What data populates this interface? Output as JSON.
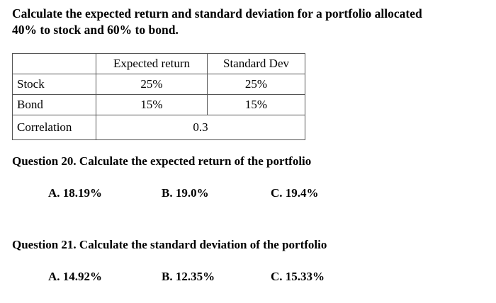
{
  "prompt": {
    "lines": [
      "Calculate the expected return and standard deviation for a portfolio allocated",
      "40% to stock and 60% to bond."
    ]
  },
  "table": {
    "columns": [
      "Expected return",
      "Standard Dev"
    ],
    "rows": [
      [
        "Stock",
        "25%",
        "25%"
      ],
      [
        "Bond",
        "15%",
        "15%"
      ]
    ],
    "correlation": {
      "label": "Correlation",
      "value": 0.3
    }
  },
  "questions": [
    {
      "title": "Question 20. Calculate the expected return of the portfolio",
      "options": [
        "A. 18.19%",
        "B. 19.0%",
        "C. 19.4%"
      ]
    },
    {
      "title": "Question 21. Calculate the standard deviation of the portfolio",
      "options": [
        "A. 14.92%",
        "B. 12.35%",
        "C. 15.33%"
      ]
    }
  ]
}
